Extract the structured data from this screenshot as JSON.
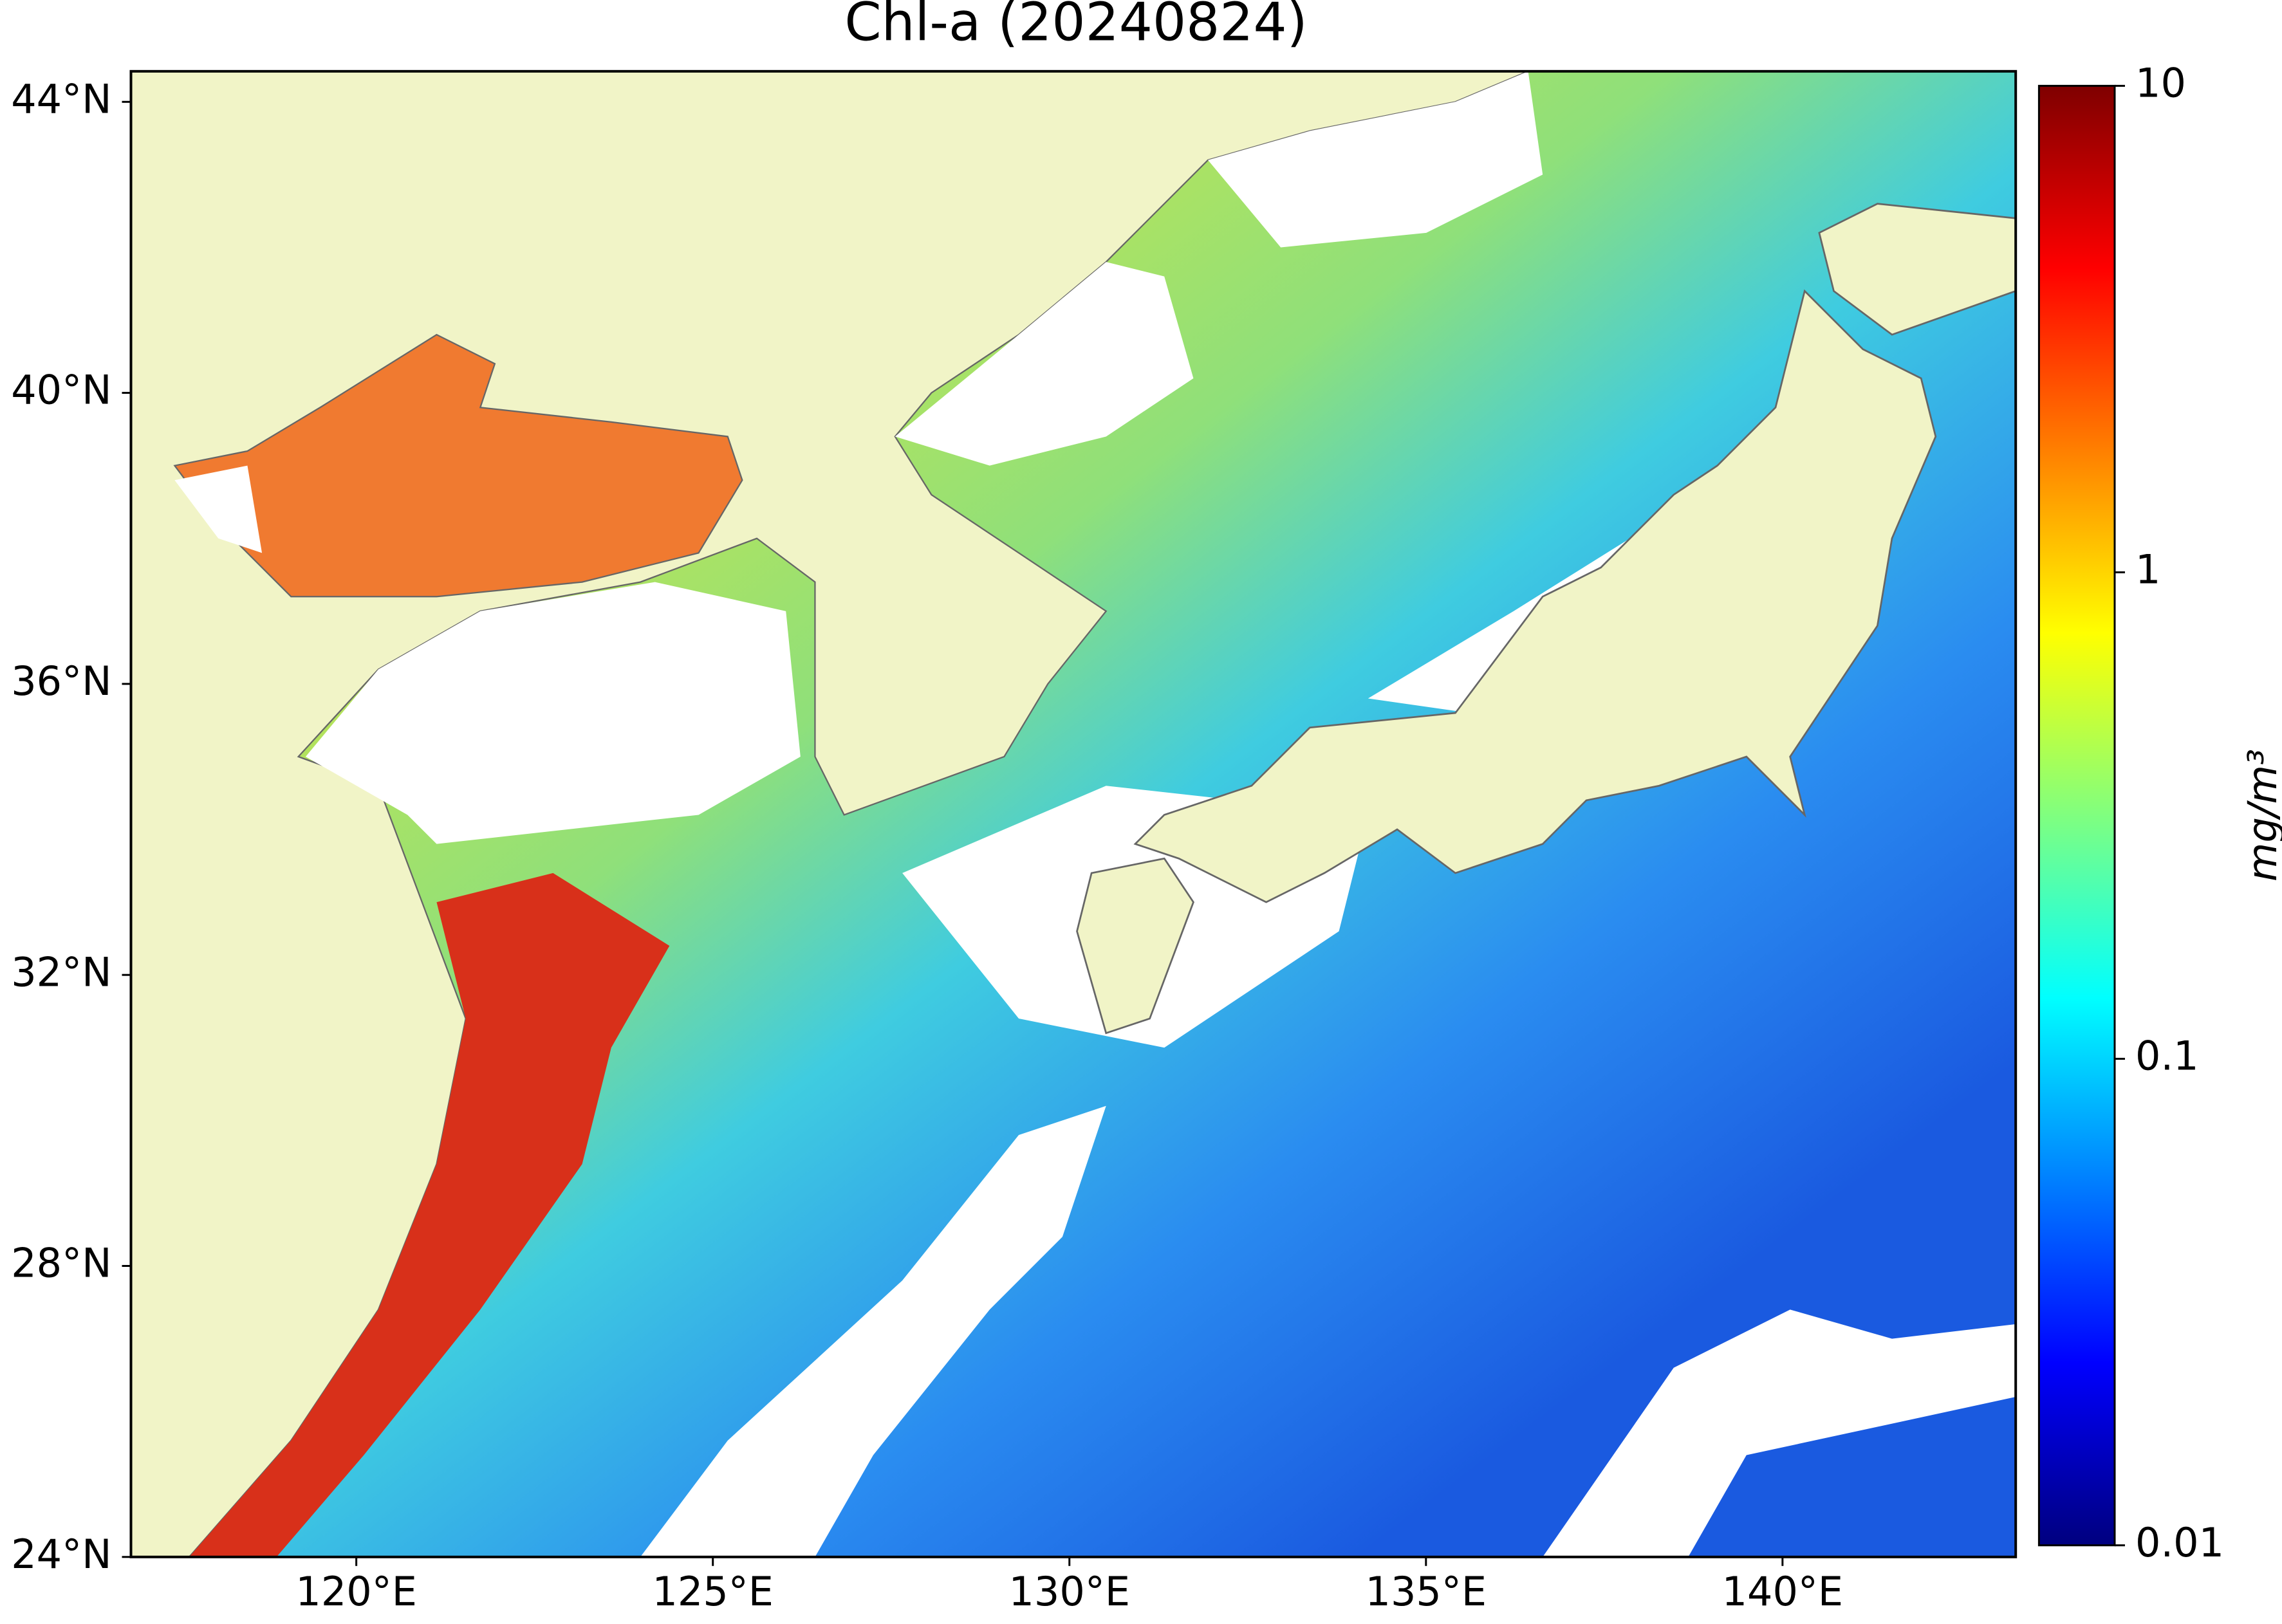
{
  "chart_data": {
    "type": "map",
    "title": "Chl-a (20240824)",
    "xlim": [
      116.84,
      143.27
    ],
    "ylim": [
      24,
      44.42
    ],
    "xticks": [
      {
        "value": 120,
        "label": "120°E"
      },
      {
        "value": 125,
        "label": "125°E"
      },
      {
        "value": 130,
        "label": "130°E"
      },
      {
        "value": 135,
        "label": "135°E"
      },
      {
        "value": 140,
        "label": "140°E"
      }
    ],
    "yticks": [
      {
        "value": 24,
        "label": "24°N"
      },
      {
        "value": 28,
        "label": "28°N"
      },
      {
        "value": 32,
        "label": "32°N"
      },
      {
        "value": 36,
        "label": "36°N"
      },
      {
        "value": 40,
        "label": "40°N"
      },
      {
        "value": 44,
        "label": "44°N"
      }
    ],
    "colorbar": {
      "label": "mg/m³",
      "clim": [
        0.01,
        10
      ],
      "log_scale": true,
      "colormap": "jet",
      "ticks": [
        10,
        1,
        0.1,
        0.01
      ]
    },
    "land_color": "#f1f4c7"
  }
}
